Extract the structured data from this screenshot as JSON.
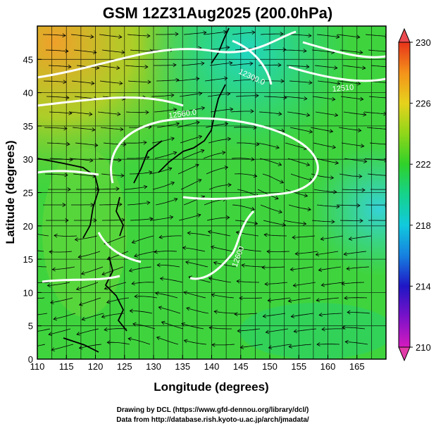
{
  "title": "GSM 12Z31Aug2025 (200.0hPa)",
  "x_axis": {
    "label": "Longitude (degrees)",
    "range": [
      110,
      170
    ],
    "ticks": [
      "110",
      "115",
      "120",
      "125",
      "130",
      "135",
      "140",
      "145",
      "150",
      "155",
      "160",
      "165"
    ]
  },
  "y_axis": {
    "label": "Latitude (degrees)",
    "range": [
      0,
      50
    ],
    "ticks": [
      "0",
      "5",
      "10",
      "15",
      "20",
      "25",
      "30",
      "35",
      "40",
      "45"
    ]
  },
  "colorbar": {
    "range": [
      210,
      230
    ],
    "ticks": [
      "210",
      "214",
      "218",
      "222",
      "226",
      "230"
    ]
  },
  "contour_labels": [
    "12300.0",
    "12560.0",
    "12510",
    "12600"
  ],
  "footer": {
    "line1": "Drawing by DCL (https://www.gfd-dennou.org/library/dcl/)",
    "line2": "Data from http://database.rish.kyoto-u.ac.jp/arch/jmadata/"
  },
  "colors": {
    "temp_low": "#cc00cc",
    "temp_mid": "#00cc33",
    "temp_high": "#ff3300",
    "contour": "#ffffff",
    "streamline": "#000000"
  }
}
